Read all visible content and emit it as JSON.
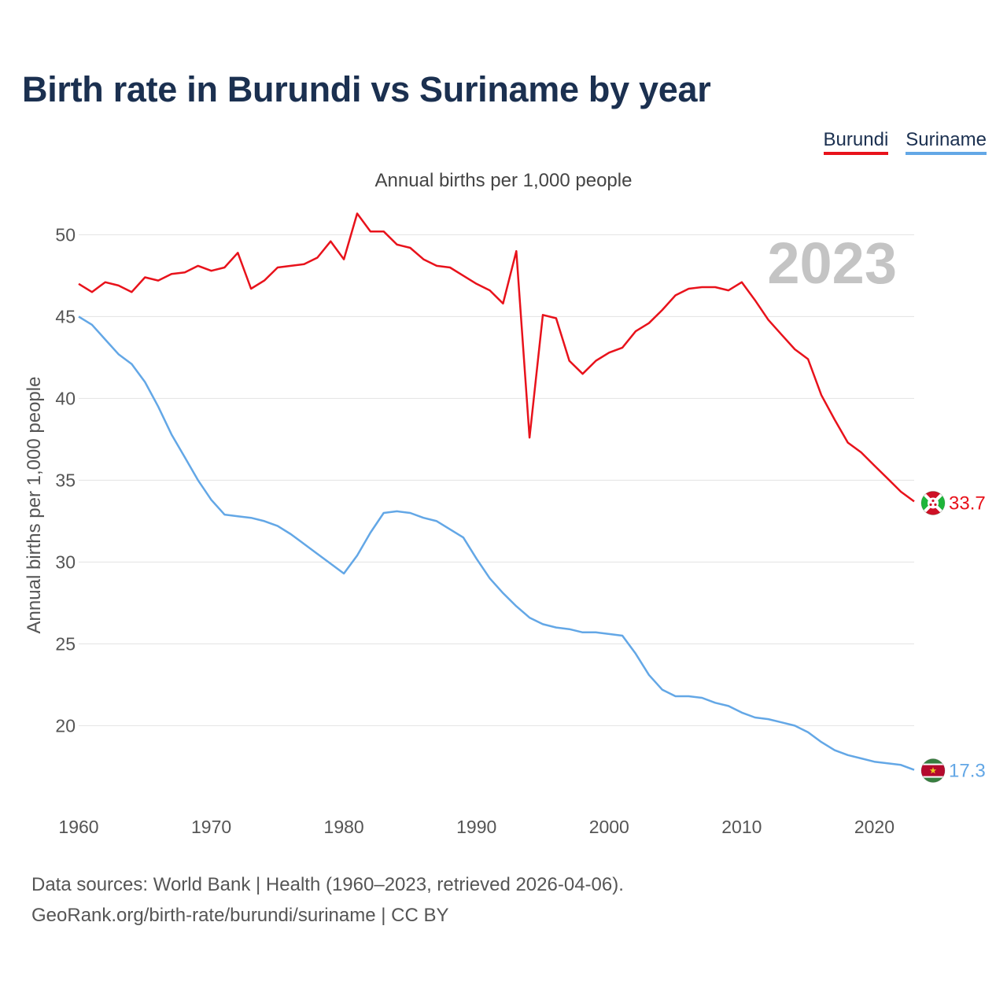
{
  "title": "Birth rate in Burundi vs Suriname by year",
  "subtitle": "Annual births per 1,000 people",
  "legend": [
    {
      "name": "Burundi",
      "color": "#e8121b"
    },
    {
      "name": "Suriname",
      "color": "#63a7e6"
    }
  ],
  "footer": {
    "line1": "Data sources: World Bank | Health (1960–2023, retrieved 2026-04-06).",
    "line2": "GeoRank.org/birth-rate/burundi/suriname | CC BY"
  },
  "chart_data": {
    "type": "line",
    "title": "Birth rate in Burundi vs Suriname by year",
    "xlabel": "",
    "ylabel": "Annual births per 1,000 people",
    "year_label": "2023",
    "xlim": [
      1960,
      2023
    ],
    "ylim": [
      15.5,
      53
    ],
    "x_ticks": [
      1960,
      1970,
      1980,
      1990,
      2000,
      2010,
      2020
    ],
    "y_ticks": [
      20,
      25,
      30,
      35,
      40,
      45,
      50
    ],
    "grid": true,
    "x": [
      1960,
      1961,
      1962,
      1963,
      1964,
      1965,
      1966,
      1967,
      1968,
      1969,
      1970,
      1971,
      1972,
      1973,
      1974,
      1975,
      1976,
      1977,
      1978,
      1979,
      1980,
      1981,
      1982,
      1983,
      1984,
      1985,
      1986,
      1987,
      1988,
      1989,
      1990,
      1991,
      1992,
      1993,
      1994,
      1995,
      1996,
      1997,
      1998,
      1999,
      2000,
      2001,
      2002,
      2003,
      2004,
      2005,
      2006,
      2007,
      2008,
      2009,
      2010,
      2011,
      2012,
      2013,
      2014,
      2015,
      2016,
      2017,
      2018,
      2019,
      2020,
      2021,
      2022,
      2023
    ],
    "series": [
      {
        "name": "Burundi",
        "color": "#e8121b",
        "end_label": "33.7",
        "values": [
          47.0,
          46.5,
          47.1,
          46.9,
          46.5,
          47.4,
          47.2,
          47.6,
          47.7,
          48.1,
          47.8,
          48.0,
          48.9,
          46.7,
          47.2,
          48.0,
          48.1,
          48.2,
          48.6,
          49.6,
          48.5,
          51.3,
          50.2,
          50.2,
          49.4,
          49.2,
          48.5,
          48.1,
          48.0,
          47.5,
          47.0,
          46.6,
          45.8,
          49.0,
          37.6,
          45.1,
          44.9,
          42.3,
          41.5,
          42.3,
          42.8,
          43.1,
          44.1,
          44.6,
          45.4,
          46.3,
          46.7,
          46.8,
          46.8,
          46.6,
          47.1,
          46.0,
          44.8,
          43.9,
          43.0,
          42.4,
          40.2,
          38.7,
          37.3,
          36.7,
          35.9,
          35.1,
          34.3,
          33.7
        ]
      },
      {
        "name": "Suriname",
        "color": "#63a7e6",
        "end_label": "17.3",
        "values": [
          45.0,
          44.5,
          43.6,
          42.7,
          42.1,
          41.0,
          39.5,
          37.8,
          36.4,
          35.0,
          33.8,
          32.9,
          32.8,
          32.7,
          32.5,
          32.2,
          31.7,
          31.1,
          30.5,
          29.9,
          29.3,
          30.4,
          31.8,
          33.0,
          33.1,
          33.0,
          32.7,
          32.5,
          32.0,
          31.5,
          30.2,
          29.0,
          28.1,
          27.3,
          26.6,
          26.2,
          26.0,
          25.9,
          25.7,
          25.7,
          25.6,
          25.5,
          24.4,
          23.1,
          22.2,
          21.8,
          21.8,
          21.7,
          21.4,
          21.2,
          20.8,
          20.5,
          20.4,
          20.2,
          20.0,
          19.6,
          19.0,
          18.5,
          18.2,
          18.0,
          17.8,
          17.7,
          17.6,
          17.3
        ]
      }
    ]
  }
}
